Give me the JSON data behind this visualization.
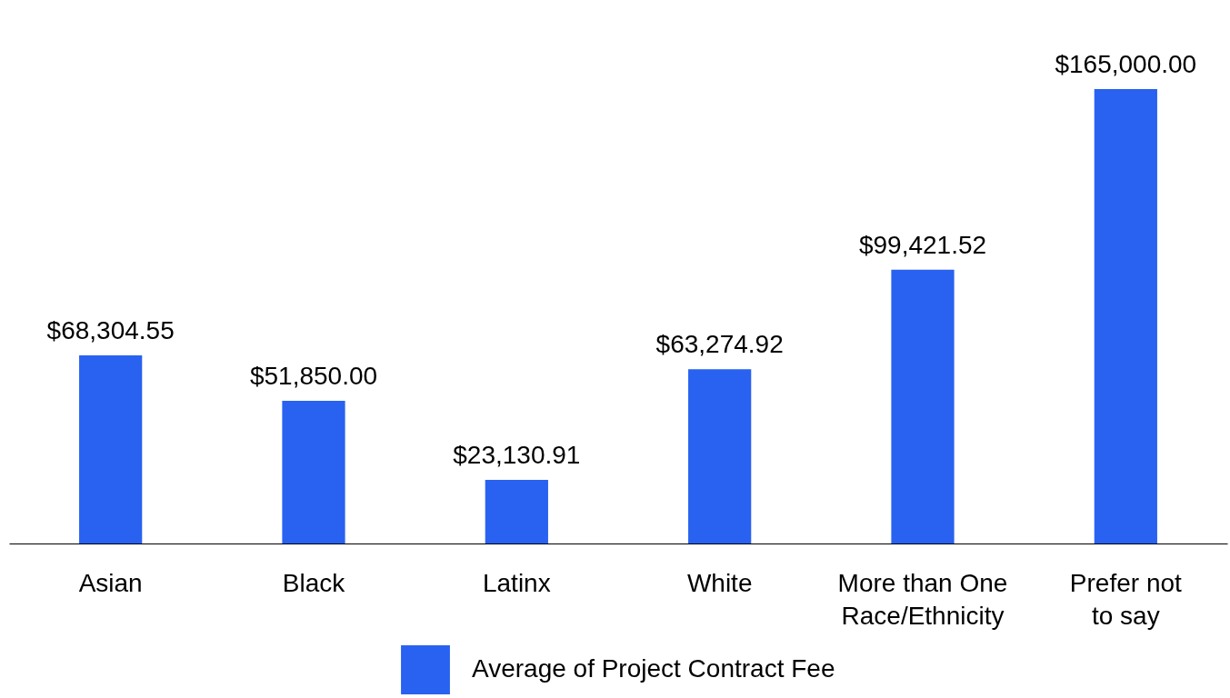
{
  "chart_data": {
    "type": "bar",
    "categories": [
      "Asian",
      "Black",
      "Latinx",
      "White",
      "More than One Race/Ethnicity",
      "Prefer not to say"
    ],
    "series": [
      {
        "name": "Average of Project Contract Fee",
        "color": "#2962f0",
        "values": [
          68304.55,
          51850.0,
          23130.91,
          63274.92,
          99421.52,
          165000.0
        ],
        "value_labels": [
          "$68,304.55",
          "$51,850.00",
          "$23,130.91",
          "$63,274.92",
          "$99,421.52",
          "$165,000.00"
        ]
      }
    ],
    "legend": "bottom",
    "grid": false
  }
}
